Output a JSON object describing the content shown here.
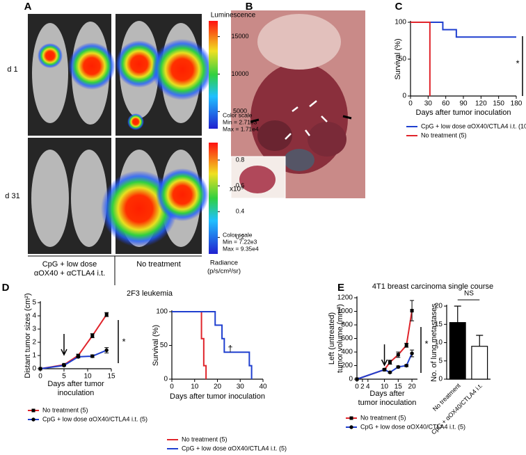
{
  "figure": {
    "panel_labels": [
      "A",
      "B",
      "C",
      "D",
      "E"
    ],
    "panel_a": {
      "row_labels": [
        "d 1",
        "d 31"
      ],
      "group_labels": [
        [
          "CpG + low dose",
          "αOX40 + αCTLA4 i.t."
        ],
        [
          "No treatment"
        ]
      ],
      "luminescence": {
        "title": "Luminescence",
        "lim": [
          2710,
          17100
        ],
        "ticks": [
          5000,
          10000,
          15000
        ],
        "notes": [
          "Color scale",
          "Min = 2.71e3",
          "Max = 1.71e4"
        ]
      },
      "radiance": {
        "lim": [
          0.0722,
          0.935
        ],
        "ticks": [
          0.2,
          0.4,
          0.6,
          0.8
        ],
        "multiplier": "x10⁵",
        "notes": [
          "Color scale",
          "Min = 7.22e3",
          "Max = 9.35e4"
        ],
        "unit": [
          "Radiance",
          "(p/s/cm²/sr)"
        ]
      }
    },
    "panel_d_title": "2F3 leukemia",
    "panel_e_title": "4T1 breast carcinoma single course"
  },
  "chart_data": [
    {
      "type": "line",
      "markers": false,
      "xlabel": [
        "Days after tumor inoculation"
      ],
      "ylabel": [
        "Survival (%)"
      ],
      "xlim": [
        0,
        180
      ],
      "xticks": [
        0,
        30,
        60,
        90,
        120,
        150,
        180
      ],
      "ylim": [
        0,
        100
      ],
      "yticks": [
        0,
        50,
        100
      ],
      "series": [
        {
          "name": "CpG + low dose αOX40/CTLA4 i.t. (10)",
          "color": "#1f3fcf",
          "x": [
            0,
            55,
            55,
            78,
            78,
            180
          ],
          "values": [
            100,
            100,
            90,
            90,
            80,
            80
          ]
        },
        {
          "name": "No treatment (5)",
          "color": "#e0242b",
          "x": [
            0,
            33,
            33
          ],
          "values": [
            100,
            100,
            0
          ]
        }
      ],
      "annotations": [
        "*"
      ]
    },
    {
      "type": "line",
      "markers": true,
      "xlabel": [
        "Days after tumor",
        "inoculation"
      ],
      "ylabel": [
        "Distant tumor sizes (cm²)"
      ],
      "xlim": [
        0,
        15
      ],
      "xticks": [
        0,
        5,
        10,
        15
      ],
      "ylim": [
        0,
        5
      ],
      "yticks": [
        0,
        1,
        2,
        3,
        4,
        5
      ],
      "series": [
        {
          "name": "No treatment (5)",
          "color": "#e0242b",
          "marker": "square",
          "x": [
            0,
            5,
            8,
            11,
            14
          ],
          "values": [
            0,
            0.3,
            1.0,
            2.5,
            4.1
          ],
          "errors": [
            0,
            0.05,
            0.1,
            0.15,
            0.15
          ]
        },
        {
          "name": "CpG + low dose αOX40/CTLA4 i.t. (5)",
          "color": "#1f3fcf",
          "marker": "circle",
          "x": [
            0,
            5,
            8,
            11,
            14
          ],
          "values": [
            0,
            0.25,
            0.9,
            0.95,
            1.4
          ],
          "errors": [
            0,
            0.05,
            0.08,
            0.1,
            0.2
          ]
        }
      ],
      "annotations": [
        "*"
      ]
    },
    {
      "type": "line",
      "markers": false,
      "xlabel": [
        "Days after tumor inoculation"
      ],
      "ylabel": [
        "Survival (%)"
      ],
      "xlim": [
        0,
        40
      ],
      "xticks": [
        0,
        10,
        20,
        30,
        40
      ],
      "ylim": [
        0,
        100
      ],
      "yticks": [
        0,
        50,
        100
      ],
      "series": [
        {
          "name": "No treatment (5)",
          "color": "#e0242b",
          "x": [
            0,
            13,
            13,
            14,
            14,
            15,
            15
          ],
          "values": [
            100,
            100,
            60,
            60,
            20,
            20,
            0
          ]
        },
        {
          "name": "CpG + low dose αOX40/CTLA4 i.t. (5)",
          "color": "#1f3fcf",
          "x": [
            0,
            19,
            19,
            22,
            22,
            23,
            23,
            34,
            34,
            35,
            35
          ],
          "values": [
            100,
            100,
            80,
            80,
            60,
            60,
            40,
            40,
            20,
            20,
            0
          ]
        }
      ],
      "annotations": [
        "†"
      ]
    },
    {
      "type": "line",
      "markers": true,
      "xlabel": [
        "Days after",
        "tumor inoculation"
      ],
      "ylabel": [
        "Left (untreated)",
        "tumor volume (mm³)"
      ],
      "xlim": [
        0,
        22
      ],
      "xticks": [
        0,
        2,
        4,
        10,
        15,
        20
      ],
      "ylim": [
        0,
        1200
      ],
      "yticks": [
        0,
        200,
        400,
        600,
        800,
        1000,
        1200
      ],
      "series": [
        {
          "name": "No treatment (5)",
          "color": "#e0242b",
          "marker": "square",
          "x": [
            0,
            10,
            12,
            15,
            18,
            20
          ],
          "values": [
            0,
            140,
            250,
            360,
            500,
            1010
          ],
          "errors": [
            0,
            15,
            30,
            40,
            30,
            150
          ]
        },
        {
          "name": "CpG + low dose αOX40/CTLA4 i.t. (5)",
          "color": "#1f3fcf",
          "marker": "circle",
          "x": [
            0,
            10,
            12,
            15,
            18,
            20
          ],
          "values": [
            0,
            140,
            100,
            180,
            200,
            380
          ],
          "errors": [
            0,
            10,
            10,
            15,
            15,
            50
          ]
        }
      ],
      "annotations": [
        "*"
      ]
    },
    {
      "type": "bar",
      "categories": [
        "No treatment",
        "CpG + αOX40/CTLA4 i.t."
      ],
      "values": [
        15.5,
        9
      ],
      "errors": [
        4.5,
        3
      ],
      "colors": [
        "#000000",
        "#ffffff"
      ],
      "ylim": [
        0,
        20
      ],
      "yticks": [
        0,
        5,
        10,
        15,
        20
      ],
      "ylabel": [
        "No. of lung metastases"
      ],
      "annotations": [
        "NS"
      ]
    }
  ]
}
